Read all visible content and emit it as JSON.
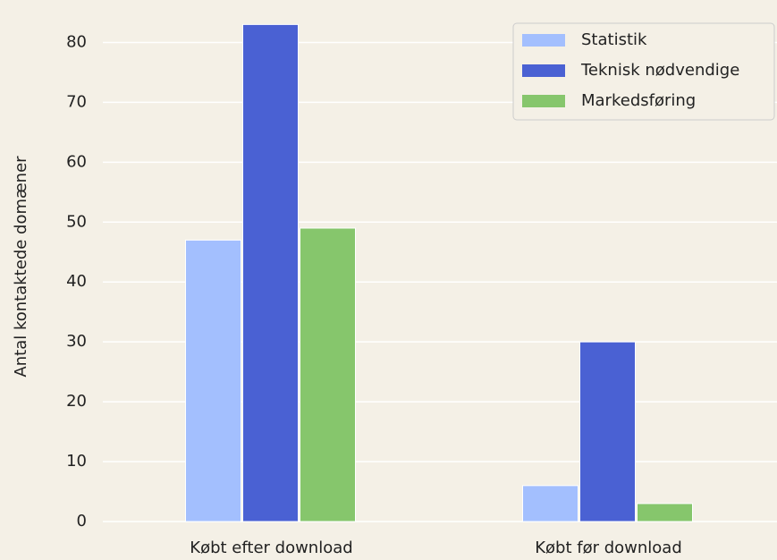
{
  "chart_data": {
    "type": "bar",
    "ylabel": "Antal kontaktede domæner",
    "categories": [
      "Købt efter download",
      "Købt før download"
    ],
    "series": [
      {
        "name": "Statistik",
        "color": "#a3bffe",
        "values": [
          47,
          6
        ]
      },
      {
        "name": "Teknisk nødvendige",
        "color": "#4a61d3",
        "values": [
          83,
          30
        ]
      },
      {
        "name": "Markedsføring",
        "color": "#86c66c",
        "values": [
          49,
          3
        ]
      }
    ],
    "ylim": [
      0,
      85
    ],
    "yticks": [
      0,
      10,
      20,
      30,
      40,
      50,
      60,
      70,
      80
    ],
    "grid": true,
    "legend": "upper right"
  }
}
